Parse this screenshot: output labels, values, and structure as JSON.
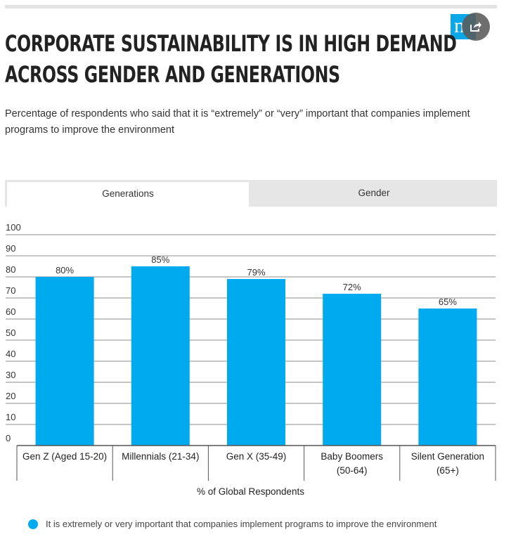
{
  "header": {
    "logo_letter": "n",
    "title_lines": [
      "CORPORATE SUSTAINABILITY IS IN HIGH DEMAND",
      "ACROSS GENDER AND GENERATIONS"
    ],
    "subtitle": "Percentage of respondents who said that it is “extremely” or “very” important that companies implement programs to improve the environment"
  },
  "tabs": {
    "active": "Generations",
    "inactive": "Gender"
  },
  "colors": {
    "bar": "#00aaee",
    "accent": "#0aa8e8"
  },
  "chart_data": {
    "type": "bar",
    "categories": [
      [
        "Gen Z (Aged 15-20)"
      ],
      [
        "Millennials (21-34)"
      ],
      [
        "Gen X (35-49)"
      ],
      [
        "Baby Boomers",
        "(50-64)"
      ],
      [
        "Silent Generation",
        "(65+)"
      ]
    ],
    "values": [
      80,
      85,
      79,
      72,
      65
    ],
    "data_labels": [
      "80%",
      "85%",
      "79%",
      "72%",
      "65%"
    ],
    "yticks": [
      0,
      10,
      20,
      30,
      40,
      50,
      60,
      70,
      80,
      90,
      100
    ],
    "ylim": [
      0,
      100
    ],
    "xlabel": "% of Global Respondents",
    "ylabel": "",
    "grid": true,
    "legend": "It is extremely or very important that companies implement programs to improve the environment"
  }
}
